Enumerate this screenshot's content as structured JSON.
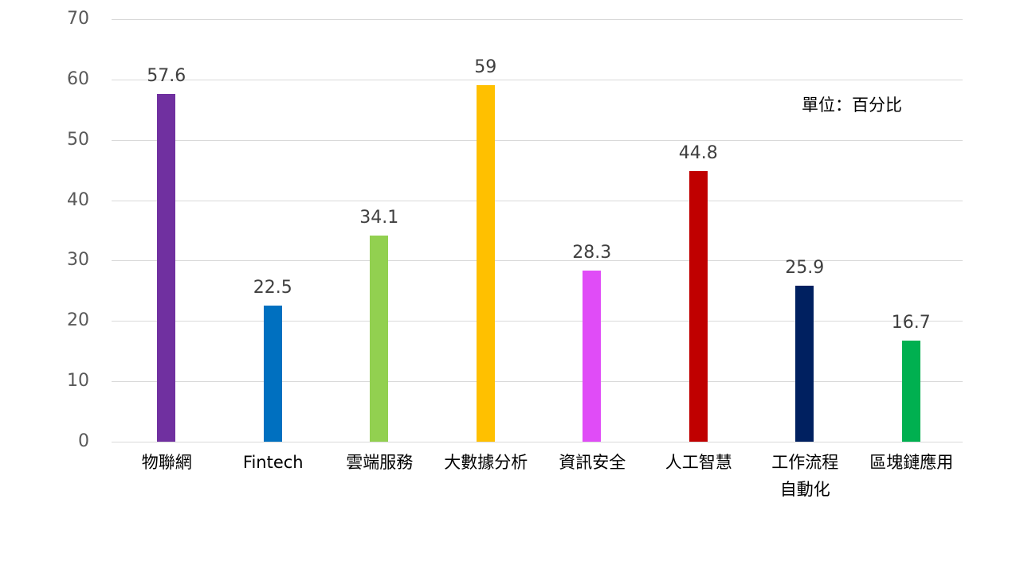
{
  "chart_data": {
    "type": "bar",
    "title": "",
    "xlabel": "",
    "ylabel": "",
    "ylim": [
      0,
      70
    ],
    "yticks": [
      0,
      10,
      20,
      30,
      40,
      50,
      60,
      70
    ],
    "grid": true,
    "legend": null,
    "annotation": "單位：百分比",
    "categories": [
      "物聯網",
      "Fintech",
      "雲端服務",
      "大數據分析",
      "資訊安全",
      "人工智慧",
      "工作流程\n自動化",
      "區塊鏈應用"
    ],
    "values": [
      57.6,
      22.5,
      34.1,
      59,
      28.3,
      44.8,
      25.9,
      16.7
    ],
    "value_labels": [
      "57.6",
      "22.5",
      "34.1",
      "59",
      "28.3",
      "44.8",
      "25.9",
      "16.7"
    ],
    "colors": [
      "#7030A0",
      "#0070C0",
      "#92D050",
      "#FFC000",
      "#E04CF7",
      "#C00000",
      "#002060",
      "#00B050"
    ]
  }
}
